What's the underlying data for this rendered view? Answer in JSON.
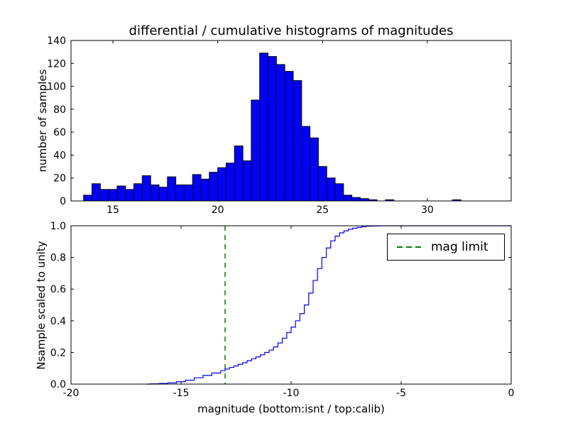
{
  "chart_data": [
    {
      "type": "bar",
      "title": "differential / cumulative histograms of magnitudes",
      "ylabel": "number of samples",
      "xlim": [
        13,
        34
      ],
      "ylim": [
        0,
        140
      ],
      "xticks": [
        15,
        20,
        25,
        30
      ],
      "yticks": [
        0,
        20,
        40,
        60,
        80,
        100,
        120,
        140
      ],
      "bin_start": 13.6,
      "bin_width": 0.4,
      "values": [
        5,
        15,
        10,
        10,
        13,
        10,
        15,
        22,
        14,
        12,
        21,
        14,
        14,
        23,
        19,
        25,
        29,
        33,
        48,
        35,
        88,
        129,
        126,
        119,
        113,
        105,
        65,
        55,
        30,
        20,
        15,
        5,
        3,
        2,
        1,
        0,
        1,
        0,
        0,
        0,
        0,
        0,
        0,
        0,
        1
      ],
      "bar_color": "#0000ff",
      "bar_edge_color": "#000000",
      "grid": false
    },
    {
      "type": "line",
      "ylabel": "Nsample scaled to unity",
      "xlabel": "magnitude (bottom:isnt / top:calib)",
      "xlim": [
        -20,
        0
      ],
      "ylim": [
        0.0,
        1.0
      ],
      "xticks": [
        -20,
        -15,
        -10,
        -5,
        0
      ],
      "yticks": [
        "0.0",
        "0.2",
        "0.4",
        "0.6",
        "0.8",
        "1.0"
      ],
      "line_color": "#0000ff",
      "step_start_x": -16.6,
      "step_points": [
        [
          -16.4,
          0.002
        ],
        [
          -16.0,
          0.004
        ],
        [
          -15.6,
          0.008
        ],
        [
          -15.2,
          0.015
        ],
        [
          -14.8,
          0.025
        ],
        [
          -14.4,
          0.04
        ],
        [
          -14.0,
          0.055
        ],
        [
          -13.6,
          0.07
        ],
        [
          -13.2,
          0.085
        ],
        [
          -13.0,
          0.095
        ],
        [
          -12.8,
          0.105
        ],
        [
          -12.6,
          0.115
        ],
        [
          -12.4,
          0.125
        ],
        [
          -12.2,
          0.135
        ],
        [
          -12.0,
          0.148
        ],
        [
          -11.8,
          0.16
        ],
        [
          -11.6,
          0.172
        ],
        [
          -11.4,
          0.185
        ],
        [
          -11.2,
          0.2
        ],
        [
          -11.0,
          0.215
        ],
        [
          -10.8,
          0.235
        ],
        [
          -10.6,
          0.26
        ],
        [
          -10.4,
          0.29
        ],
        [
          -10.2,
          0.325
        ],
        [
          -10.0,
          0.36
        ],
        [
          -9.8,
          0.4
        ],
        [
          -9.6,
          0.445
        ],
        [
          -9.4,
          0.5
        ],
        [
          -9.2,
          0.575
        ],
        [
          -9.0,
          0.655
        ],
        [
          -8.8,
          0.73
        ],
        [
          -8.6,
          0.8
        ],
        [
          -8.4,
          0.86
        ],
        [
          -8.2,
          0.905
        ],
        [
          -8.0,
          0.935
        ],
        [
          -7.8,
          0.955
        ],
        [
          -7.6,
          0.968
        ],
        [
          -7.4,
          0.978
        ],
        [
          -7.2,
          0.985
        ],
        [
          -7.0,
          0.99
        ],
        [
          -6.8,
          0.994
        ],
        [
          -6.6,
          0.997
        ],
        [
          -6.4,
          0.998
        ],
        [
          -6.2,
          0.999
        ],
        [
          -6.0,
          1.0
        ]
      ],
      "mag_limit_line": {
        "x": -13,
        "color": "#008000",
        "style": "dashed"
      },
      "legend": {
        "label": "mag limit",
        "position": "upper right"
      },
      "grid": false
    }
  ]
}
